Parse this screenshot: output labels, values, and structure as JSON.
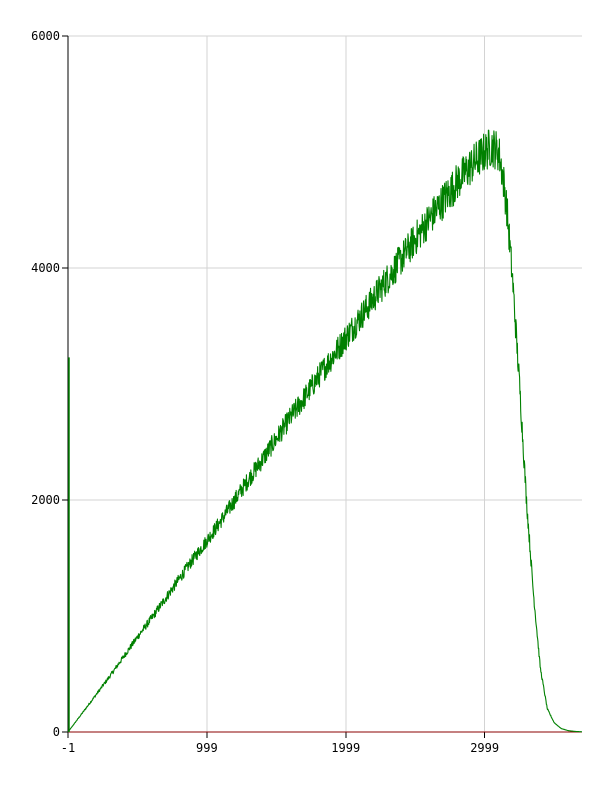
{
  "chart_data": {
    "type": "line",
    "title": "",
    "xlabel": "",
    "ylabel": "",
    "xlim": [
      -1,
      3700
    ],
    "ylim": [
      0,
      6000
    ],
    "grid": true,
    "x_ticks": [
      -1,
      999,
      1999,
      2999
    ],
    "x_tick_labels": [
      "-1",
      "999",
      "1999",
      "2999"
    ],
    "y_ticks": [
      0,
      2000,
      4000,
      6000
    ],
    "y_tick_labels": [
      "0",
      "2000",
      "4000",
      "6000"
    ],
    "series": [
      {
        "color": "#008000",
        "points": [
          [
            -1,
            0
          ],
          [
            100,
            160
          ],
          [
            200,
            320
          ],
          [
            300,
            480
          ],
          [
            400,
            650
          ],
          [
            500,
            820
          ],
          [
            600,
            980
          ],
          [
            700,
            1150
          ],
          [
            800,
            1320
          ],
          [
            900,
            1490
          ],
          [
            999,
            1650
          ],
          [
            1100,
            1820
          ],
          [
            1200,
            2000
          ],
          [
            1300,
            2180
          ],
          [
            1400,
            2350
          ],
          [
            1500,
            2530
          ],
          [
            1600,
            2710
          ],
          [
            1700,
            2880
          ],
          [
            1800,
            3060
          ],
          [
            1900,
            3230
          ],
          [
            1999,
            3400
          ],
          [
            2100,
            3570
          ],
          [
            2200,
            3740
          ],
          [
            2300,
            3910
          ],
          [
            2400,
            4080
          ],
          [
            2500,
            4250
          ],
          [
            2600,
            4420
          ],
          [
            2700,
            4580
          ],
          [
            2800,
            4740
          ],
          [
            2900,
            4880
          ],
          [
            2999,
            5000
          ],
          [
            3050,
            5050
          ],
          [
            3100,
            5000
          ],
          [
            3130,
            4800
          ],
          [
            3160,
            4500
          ],
          [
            3200,
            3900
          ],
          [
            3250,
            3000
          ],
          [
            3300,
            2000
          ],
          [
            3350,
            1200
          ],
          [
            3400,
            550
          ],
          [
            3450,
            200
          ],
          [
            3500,
            80
          ],
          [
            3550,
            30
          ],
          [
            3600,
            12
          ],
          [
            3650,
            5
          ],
          [
            3700,
            2
          ]
        ]
      },
      {
        "color": "#8b0000",
        "points": [
          [
            -1,
            0
          ],
          [
            3700,
            0
          ]
        ]
      }
    ],
    "noise": {
      "series_index": 0,
      "amplitude_ratio": 0.035
    },
    "spike": {
      "x": -1,
      "y": 3230,
      "color": "#008000"
    }
  }
}
